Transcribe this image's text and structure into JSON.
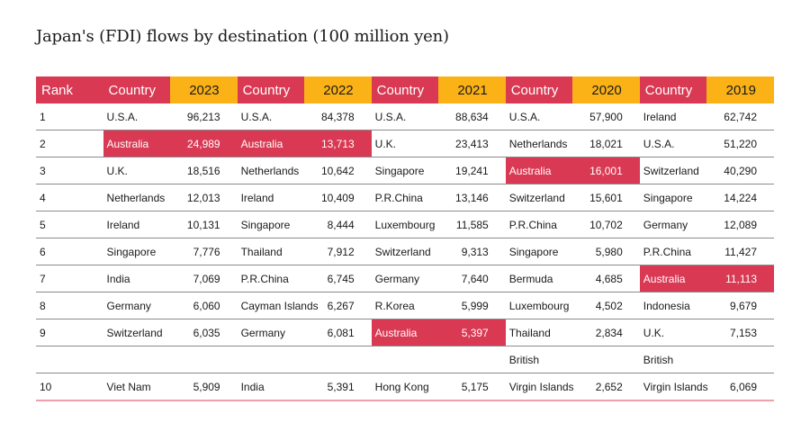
{
  "title": "Japan's (FDI) flows by destination (100 million yen)",
  "colors": {
    "header_red": "#d93953",
    "header_orange": "#fbb217",
    "highlight": "#d93953"
  },
  "headers": [
    "Rank",
    "Country",
    "2023",
    "Country",
    "2022",
    "Country",
    "2021",
    "Country",
    "2020",
    "Country",
    "2019"
  ],
  "rows": [
    {
      "rank": "1",
      "entries": [
        {
          "country": "U.S.A.",
          "value": "96,213"
        },
        {
          "country": "U.S.A.",
          "value": "84,378"
        },
        {
          "country": "U.S.A.",
          "value": "88,634"
        },
        {
          "country": "U.S.A.",
          "value": "57,900"
        },
        {
          "country": "Ireland",
          "value": "62,742"
        }
      ]
    },
    {
      "rank": "2",
      "entries": [
        {
          "country": "Australia",
          "value": "24,989",
          "highlight": true
        },
        {
          "country": "Australia",
          "value": "13,713",
          "highlight": true
        },
        {
          "country": "U.K.",
          "value": "23,413"
        },
        {
          "country": "Netherlands",
          "value": "18,021"
        },
        {
          "country": "U.S.A.",
          "value": "51,220"
        }
      ]
    },
    {
      "rank": "3",
      "entries": [
        {
          "country": "U.K.",
          "value": "18,516"
        },
        {
          "country": "Netherlands",
          "value": "10,642"
        },
        {
          "country": "Singapore",
          "value": "19,241"
        },
        {
          "country": "Australia",
          "value": "16,001",
          "highlight": true
        },
        {
          "country": "Switzerland",
          "value": "40,290"
        }
      ]
    },
    {
      "rank": "4",
      "entries": [
        {
          "country": "Netherlands",
          "value": "12,013"
        },
        {
          "country": "Ireland",
          "value": "10,409"
        },
        {
          "country": "P.R.China",
          "value": "13,146"
        },
        {
          "country": "Switzerland",
          "value": "15,601"
        },
        {
          "country": "Singapore",
          "value": "14,224"
        }
      ]
    },
    {
      "rank": "5",
      "entries": [
        {
          "country": "Ireland",
          "value": "10,131"
        },
        {
          "country": "Singapore",
          "value": "8,444"
        },
        {
          "country": "Luxembourg",
          "value": "11,585"
        },
        {
          "country": "P.R.China",
          "value": "10,702"
        },
        {
          "country": "Germany",
          "value": "12,089"
        }
      ]
    },
    {
      "rank": "6",
      "entries": [
        {
          "country": "Singapore",
          "value": "7,776"
        },
        {
          "country": "Thailand",
          "value": "7,912"
        },
        {
          "country": "Switzerland",
          "value": "9,313"
        },
        {
          "country": "Singapore",
          "value": "5,980"
        },
        {
          "country": "P.R.China",
          "value": "11,427"
        }
      ]
    },
    {
      "rank": "7",
      "entries": [
        {
          "country": "India",
          "value": "7,069"
        },
        {
          "country": "P.R.China",
          "value": "6,745"
        },
        {
          "country": "Germany",
          "value": "7,640"
        },
        {
          "country": "Bermuda",
          "value": "4,685"
        },
        {
          "country": "Australia",
          "value": "11,113",
          "highlight": true
        }
      ]
    },
    {
      "rank": "8",
      "entries": [
        {
          "country": "Germany",
          "value": "6,060"
        },
        {
          "country": "Cayman Islands",
          "value": "6,267"
        },
        {
          "country": "R.Korea",
          "value": "5,999"
        },
        {
          "country": "Luxembourg",
          "value": "4,502"
        },
        {
          "country": "Indonesia",
          "value": "9,679"
        }
      ]
    },
    {
      "rank": "9",
      "entries": [
        {
          "country": "Switzerland",
          "value": "6,035"
        },
        {
          "country": "Germany",
          "value": "6,081"
        },
        {
          "country": "Australia",
          "value": "5,397",
          "highlight": true
        },
        {
          "country": "Thailand",
          "value": "2,834"
        },
        {
          "country": "U.K.",
          "value": "7,153"
        }
      ]
    },
    {
      "rank": "",
      "continuation": true,
      "entries": [
        {
          "country": "",
          "value": ""
        },
        {
          "country": "",
          "value": ""
        },
        {
          "country": "",
          "value": ""
        },
        {
          "country": "British",
          "value": ""
        },
        {
          "country": "British",
          "value": ""
        }
      ]
    },
    {
      "rank": "10",
      "entries": [
        {
          "country": "Viet Nam",
          "value": "5,909"
        },
        {
          "country": "India",
          "value": "5,391"
        },
        {
          "country": "Hong Kong",
          "value": "5,175"
        },
        {
          "country": "Virgin Islands",
          "value": "2,652"
        },
        {
          "country": "Virgin Islands",
          "value": "6,069"
        }
      ]
    }
  ]
}
